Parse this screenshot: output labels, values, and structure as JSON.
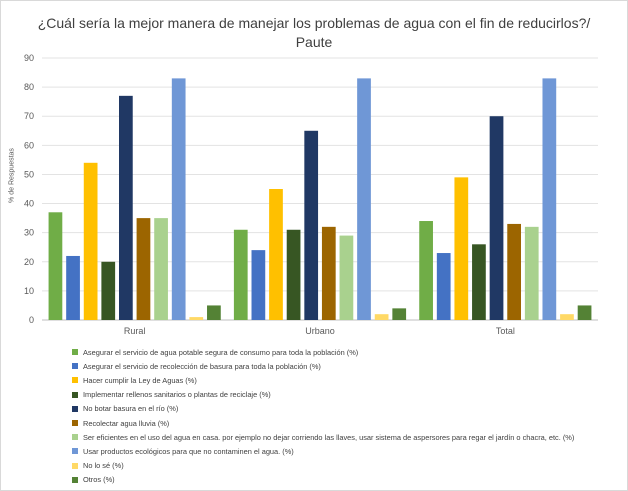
{
  "chart_data": {
    "type": "bar",
    "title_line1": "¿Cuál sería la mejor manera de manejar los problemas de agua con el fin de reducirlos?/",
    "title_line2": "Paute",
    "ylabel": "% de Respuestas",
    "xlabel": "",
    "ylim": [
      0,
      90
    ],
    "yticks": [
      0,
      10,
      20,
      30,
      40,
      50,
      60,
      70,
      80,
      90
    ],
    "grid": true,
    "legend_position": "bottom",
    "categories": [
      "Rural",
      "Urbano",
      "Total"
    ],
    "series": [
      {
        "name": "Asegurar el servicio de agua potable segura de consumo para toda la población (%)",
        "color": "#70ad47",
        "values": [
          37,
          31,
          34
        ]
      },
      {
        "name": "Asegurar el servicio de recolección de basura para toda la población (%)",
        "color": "#4472c4",
        "values": [
          22,
          24,
          23
        ]
      },
      {
        "name": "Hacer cumplir la Ley de Aguas (%)",
        "color": "#ffc000",
        "values": [
          54,
          45,
          49
        ]
      },
      {
        "name": "Implementar rellenos sanitarios o plantas de reciclaje (%)",
        "color": "#375623",
        "values": [
          20,
          31,
          26
        ]
      },
      {
        "name": "No botar basura en el río (%)",
        "color": "#203864",
        "values": [
          77,
          65,
          70
        ]
      },
      {
        "name": "Recolectar agua lluvia (%)",
        "color": "#9c6500",
        "values": [
          35,
          32,
          33
        ]
      },
      {
        "name": "Ser eficientes en el uso del agua en casa. por ejemplo no dejar corriendo las llaves, usar sistema de aspersores para regar el jardín o chacra, etc. (%)",
        "color": "#a9d18e",
        "values": [
          35,
          29,
          32
        ]
      },
      {
        "name": "Usar productos ecológicos para que no contaminen el agua. (%)",
        "color": "#6f97d6",
        "values": [
          83,
          83,
          83
        ]
      },
      {
        "name": "No lo sé (%)",
        "color": "#ffd966",
        "values": [
          1,
          2,
          2
        ]
      },
      {
        "name": "Otros (%)",
        "color": "#548235",
        "values": [
          5,
          4,
          5
        ]
      }
    ]
  }
}
